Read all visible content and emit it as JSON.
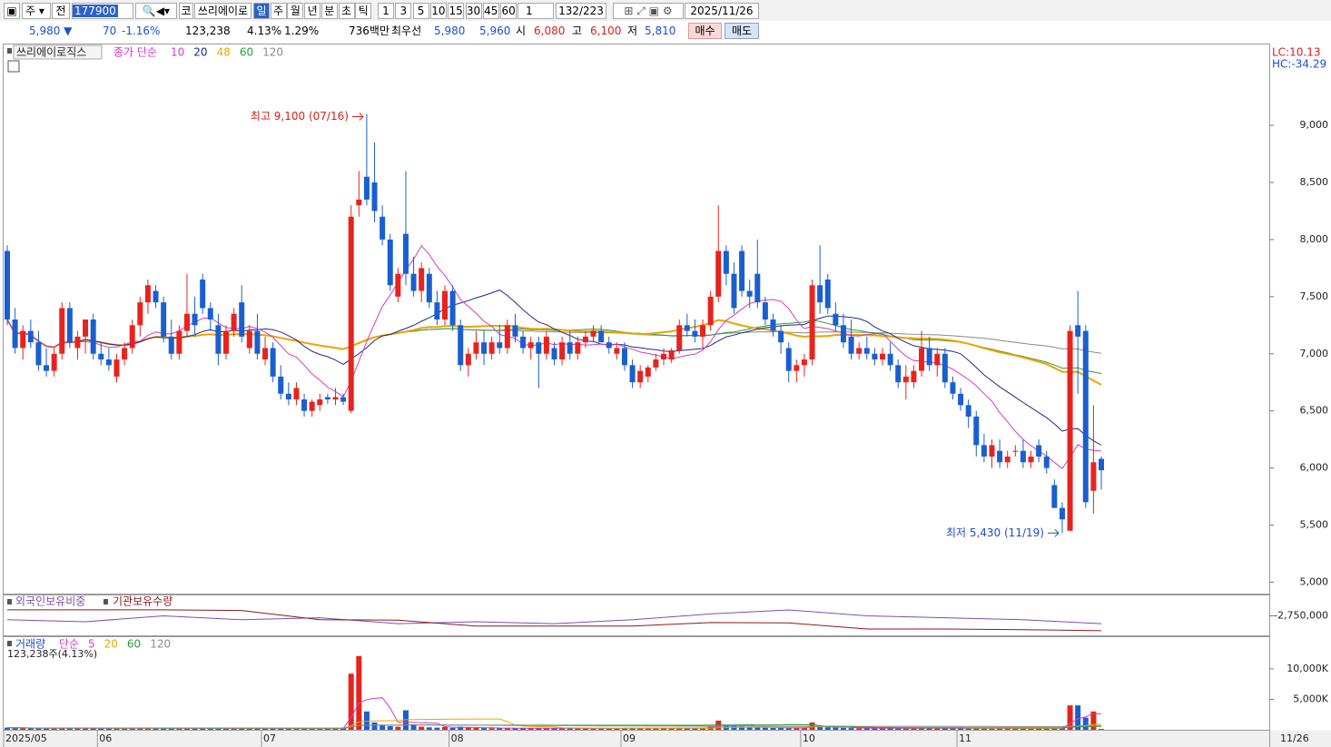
{
  "toolbar": {
    "market": "주",
    "prev": "전",
    "code": "177900",
    "kind": "코",
    "name": "쓰리에이로",
    "periods": [
      "일",
      "주",
      "월",
      "년",
      "분",
      "초",
      "틱"
    ],
    "intervals": [
      "1",
      "3",
      "5",
      "10",
      "15",
      "30",
      "45",
      "60"
    ],
    "count": "1",
    "range": "132/223",
    "date": "2025/11/26"
  },
  "info_bar": {
    "price": "5,980 ▼",
    "change": "70",
    "change_rate": "-1.16%",
    "volume": "123,238",
    "turnover_rate": "4.13%",
    "foreign_rate": "1.29%",
    "amount": "736백만",
    "best_label": "최우선",
    "best_ask": "5,980",
    "best_bid": "5,960",
    "open_label": "시",
    "open": "6,080",
    "high_label": "고",
    "high": "6,100",
    "low_label": "저",
    "low": "5,810",
    "buy": "매수",
    "sell": "매도"
  },
  "chart_data": [
    {
      "type": "candlestick",
      "stock_name": "쓰리에이로직스",
      "ma_label": "종가 단순",
      "ma_periods": [
        10,
        20,
        48,
        60,
        120
      ],
      "ma_colors": [
        "#d23cc8",
        "#1e2a8c",
        "#eba400",
        "#2e9a3a",
        "#8a8a8a"
      ],
      "lc_label": "LC:10.13",
      "hc_label": "HC:-34.29",
      "high_annotation": "최고 9,100 (07/16)",
      "low_annotation": "최저 5,430 (11/19)",
      "up_color": "#e8231e",
      "down_color": "#1a5fd0",
      "categories": [
        "2025/05",
        null,
        null,
        null,
        null,
        null,
        null,
        null,
        null,
        null,
        null,
        null,
        "06",
        null,
        null,
        null,
        null,
        null,
        null,
        null,
        null,
        null,
        null,
        null,
        null,
        null,
        null,
        null,
        null,
        null,
        null,
        null,
        null,
        "07",
        null,
        null,
        null,
        null,
        null,
        null,
        null,
        null,
        null,
        null,
        null,
        null,
        null,
        null,
        null,
        null,
        null,
        null,
        null,
        null,
        null,
        null,
        null,
        "08",
        null,
        null,
        null,
        null,
        null,
        null,
        null,
        null,
        null,
        null,
        null,
        null,
        null,
        null,
        null,
        null,
        null,
        null,
        null,
        null,
        null,
        "09",
        null,
        null,
        null,
        null,
        null,
        null,
        null,
        null,
        null,
        null,
        null,
        null,
        null,
        null,
        null,
        null,
        null,
        null,
        null,
        null,
        null,
        null,
        "10",
        null,
        null,
        null,
        null,
        null,
        null,
        null,
        null,
        null,
        null,
        null,
        null,
        null,
        null,
        null,
        null,
        null,
        null,
        null,
        "11",
        null,
        null,
        null,
        null,
        null,
        null,
        null,
        null,
        null,
        null,
        null,
        null,
        null,
        null,
        null,
        null,
        null,
        null
      ],
      "current_date_label": "11/26",
      "ohlc": [
        [
          7900,
          7950,
          7250,
          7300
        ],
        [
          7300,
          7400,
          7000,
          7050
        ],
        [
          7050,
          7250,
          6950,
          7200
        ],
        [
          7200,
          7300,
          7050,
          7100
        ],
        [
          7100,
          7200,
          6850,
          6900
        ],
        [
          6900,
          7050,
          6800,
          6850
        ],
        [
          6850,
          7050,
          6800,
          7000
        ],
        [
          7000,
          7450,
          6950,
          7400
        ],
        [
          7400,
          7450,
          7050,
          7100
        ],
        [
          7050,
          7200,
          6950,
          7150
        ],
        [
          7150,
          7300,
          7000,
          7300
        ],
        [
          7300,
          7350,
          6950,
          7000
        ],
        [
          7000,
          7100,
          6900,
          6950
        ],
        [
          6950,
          7050,
          6850,
          6900
        ],
        [
          6800,
          7000,
          6750,
          6950
        ],
        [
          6950,
          7100,
          6900,
          7050
        ],
        [
          7050,
          7300,
          7000,
          7250
        ],
        [
          7250,
          7500,
          7150,
          7450
        ],
        [
          7450,
          7650,
          7350,
          7600
        ],
        [
          7550,
          7600,
          7400,
          7450
        ],
        [
          7450,
          7500,
          7100,
          7150
        ],
        [
          7150,
          7300,
          6950,
          7000
        ],
        [
          7000,
          7250,
          6950,
          7200
        ],
        [
          7200,
          7700,
          7150,
          7350
        ],
        [
          7350,
          7500,
          7150,
          7250
        ],
        [
          7650,
          7700,
          7350,
          7400
        ],
        [
          7400,
          7450,
          7200,
          7300
        ],
        [
          7250,
          7350,
          6900,
          7000
        ],
        [
          7000,
          7250,
          6950,
          7200
        ],
        [
          7200,
          7400,
          7150,
          7350
        ],
        [
          7450,
          7600,
          7100,
          7150
        ],
        [
          7050,
          7250,
          7000,
          7200
        ],
        [
          7200,
          7350,
          6950,
          7000
        ],
        [
          6950,
          7150,
          6900,
          7050
        ],
        [
          7050,
          7100,
          6750,
          6800
        ],
        [
          6800,
          6900,
          6600,
          6650
        ],
        [
          6650,
          6750,
          6550,
          6600
        ],
        [
          6600,
          6750,
          6550,
          6700
        ],
        [
          6600,
          6650,
          6450,
          6500
        ],
        [
          6500,
          6600,
          6450,
          6580
        ],
        [
          6550,
          6650,
          6500,
          6600
        ],
        [
          6620,
          6650,
          6560,
          6600
        ],
        [
          6600,
          6700,
          6550,
          6620
        ],
        [
          6620,
          6650,
          6550,
          6580
        ],
        [
          6500,
          8300,
          6480,
          8200
        ],
        [
          8300,
          8600,
          8200,
          8350
        ],
        [
          8550,
          9100,
          8300,
          8350
        ],
        [
          8500,
          8850,
          8150,
          8250
        ],
        [
          8200,
          8300,
          7950,
          8000
        ],
        [
          8000,
          8050,
          7550,
          7600
        ],
        [
          7500,
          7750,
          7450,
          7700
        ],
        [
          8050,
          8600,
          7600,
          7700
        ],
        [
          7700,
          7850,
          7500,
          7550
        ],
        [
          7550,
          7800,
          7450,
          7750
        ],
        [
          7700,
          7750,
          7400,
          7450
        ],
        [
          7450,
          7550,
          7250,
          7300
        ],
        [
          7300,
          7600,
          7250,
          7550
        ],
        [
          7550,
          7600,
          7200,
          7250
        ],
        [
          7250,
          7300,
          6850,
          6900
        ],
        [
          6900,
          7050,
          6800,
          7000
        ],
        [
          7000,
          7200,
          6950,
          7100
        ],
        [
          7100,
          7200,
          6900,
          7000
        ],
        [
          7000,
          7150,
          6950,
          7100
        ],
        [
          7100,
          7250,
          7000,
          7050
        ],
        [
          7050,
          7300,
          7000,
          7250
        ],
        [
          7250,
          7350,
          7100,
          7150
        ],
        [
          7150,
          7200,
          7000,
          7050
        ],
        [
          7050,
          7150,
          6950,
          7100
        ],
        [
          7100,
          7150,
          6700,
          7000
        ],
        [
          7000,
          7200,
          6950,
          7150
        ],
        [
          7050,
          7100,
          6900,
          6950
        ],
        [
          6950,
          7150,
          6900,
          7100
        ],
        [
          7100,
          7200,
          6950,
          7000
        ],
        [
          7000,
          7150,
          6950,
          7100
        ],
        [
          7100,
          7200,
          7050,
          7150
        ],
        [
          7150,
          7250,
          7100,
          7200
        ],
        [
          7200,
          7250,
          7100,
          7100
        ],
        [
          7100,
          7150,
          7000,
          7050
        ],
        [
          7000,
          7100,
          6950,
          7050
        ],
        [
          7050,
          7100,
          6850,
          6900
        ],
        [
          6900,
          6950,
          6700,
          6750
        ],
        [
          6750,
          6900,
          6700,
          6850
        ],
        [
          6800,
          6900,
          6750,
          6880
        ],
        [
          6880,
          7000,
          6850,
          6950
        ],
        [
          6950,
          7050,
          6900,
          7000
        ],
        [
          6950,
          7050,
          6920,
          7030
        ],
        [
          7030,
          7300,
          7000,
          7250
        ],
        [
          7250,
          7350,
          7150,
          7200
        ],
        [
          7200,
          7300,
          7100,
          7150
        ],
        [
          7150,
          7300,
          7050,
          7250
        ],
        [
          7250,
          7550,
          7200,
          7500
        ],
        [
          7500,
          8300,
          7450,
          7900
        ],
        [
          7900,
          7950,
          7600,
          7700
        ],
        [
          7700,
          7800,
          7350,
          7400
        ],
        [
          7900,
          7950,
          7500,
          7550
        ],
        [
          7550,
          7650,
          7400,
          7500
        ],
        [
          7700,
          8000,
          7400,
          7450
        ],
        [
          7450,
          7500,
          7250,
          7300
        ],
        [
          7300,
          7350,
          7150,
          7200
        ],
        [
          7200,
          7250,
          7000,
          7100
        ],
        [
          7050,
          7100,
          6750,
          6850
        ],
        [
          6850,
          6950,
          6750,
          6900
        ],
        [
          6900,
          7000,
          6800,
          6950
        ],
        [
          6950,
          7650,
          6900,
          7600
        ],
        [
          7600,
          7950,
          7350,
          7450
        ],
        [
          7650,
          7700,
          7350,
          7400
        ],
        [
          7350,
          7450,
          7200,
          7250
        ],
        [
          7250,
          7350,
          7050,
          7100
        ],
        [
          7150,
          7300,
          6950,
          7000
        ],
        [
          7000,
          7100,
          6950,
          7050
        ],
        [
          7050,
          7150,
          6950,
          7000
        ],
        [
          7000,
          7050,
          6900,
          6950
        ],
        [
          6950,
          7050,
          6900,
          7000
        ],
        [
          7000,
          7100,
          6850,
          6900
        ],
        [
          6900,
          6950,
          6700,
          6750
        ],
        [
          6750,
          6900,
          6600,
          6800
        ],
        [
          6750,
          6900,
          6700,
          6850
        ],
        [
          6850,
          7200,
          6800,
          7050
        ],
        [
          7050,
          7150,
          6850,
          6900
        ],
        [
          6900,
          7050,
          6800,
          7000
        ],
        [
          7000,
          7050,
          6700,
          6750
        ],
        [
          6750,
          6800,
          6600,
          6650
        ],
        [
          6650,
          6700,
          6500,
          6550
        ],
        [
          6550,
          6600,
          6350,
          6450
        ],
        [
          6450,
          6500,
          6100,
          6200
        ],
        [
          6200,
          6300,
          6050,
          6100
        ],
        [
          6100,
          6250,
          6000,
          6200
        ],
        [
          6150,
          6250,
          6000,
          6050
        ],
        [
          6050,
          6150,
          6000,
          6100
        ],
        [
          6150,
          6200,
          6100,
          6150
        ],
        [
          6150,
          6250,
          6000,
          6050
        ],
        [
          6050,
          6150,
          6000,
          6100
        ],
        [
          6200,
          6250,
          6050,
          6100
        ],
        [
          6100,
          6150,
          5950,
          6000
        ],
        [
          5850,
          5900,
          5650,
          5650
        ],
        [
          5650,
          5700,
          5430,
          5550
        ],
        [
          5450,
          7250,
          5450,
          7200
        ],
        [
          7250,
          7550,
          6650,
          7150
        ],
        [
          7200,
          7250,
          5650,
          5700
        ],
        [
          5800,
          6550,
          5600,
          6050
        ],
        [
          6080,
          6100,
          5810,
          5980
        ]
      ],
      "ylim": [
        4900,
        9700
      ],
      "yticks": [
        {
          "value": 5000,
          "label": "5,000"
        },
        {
          "value": 5500,
          "label": "5,500"
        },
        {
          "value": 6000,
          "label": "6,000"
        },
        {
          "value": 6500,
          "label": "6,500"
        },
        {
          "value": 7000,
          "label": "7,000"
        },
        {
          "value": 7500,
          "label": "7,500"
        },
        {
          "value": 8000,
          "label": "8,000"
        },
        {
          "value": 8500,
          "label": "8,500"
        },
        {
          "value": 9000,
          "label": "9,000"
        }
      ]
    },
    {
      "type": "line",
      "series": [
        {
          "name": "외국인보유비중",
          "color": "#7b4fb0",
          "axis": "y2",
          "values": [
            1.2,
            1.15,
            1.3,
            1.2,
            1.25,
            1.1,
            1.15,
            1.1,
            1.2,
            1.35,
            1.45,
            1.3,
            1.25,
            1.2,
            1.1
          ]
        },
        {
          "name": "기관보유수량",
          "color": "#8b1a1a",
          "values": [
            -2580000,
            -2580000,
            -2580000,
            -2600000,
            -2860000,
            -2870000,
            -3040000,
            -3040000,
            -3040000,
            -2940000,
            -2950000,
            -3120000,
            -3120000,
            -3140000,
            -3170000
          ]
        }
      ],
      "ylim": [
        -3300000,
        -2200000
      ],
      "yticks": [
        {
          "value": -2750000,
          "label": "-2,750,000"
        }
      ],
      "y2lim": [
        0.8,
        1.8
      ]
    },
    {
      "type": "bar",
      "title": "거래량",
      "ma_label": "단순",
      "ma_periods": [
        5,
        20,
        60,
        120
      ],
      "ma_colors": [
        "#d23cc8",
        "#eba400",
        "#2e9a3a",
        "#8a8a8a"
      ],
      "subtitle": "123,238주(4.13%)",
      "values": [
        350,
        300,
        280,
        260,
        250,
        300,
        280,
        320,
        260,
        240,
        300,
        260,
        240,
        220,
        230,
        260,
        300,
        320,
        280,
        250,
        240,
        230,
        250,
        300,
        260,
        280,
        240,
        230,
        220,
        240,
        260,
        240,
        230,
        220,
        200,
        210,
        190,
        200,
        180,
        190,
        200,
        190,
        210,
        250,
        9200,
        12100,
        3000,
        1200,
        800,
        600,
        500,
        3200,
        900,
        500,
        400,
        350,
        450,
        300,
        500,
        350,
        300,
        280,
        260,
        300,
        250,
        240,
        260,
        230,
        300,
        250,
        240,
        230,
        220,
        250,
        230,
        220,
        240,
        230,
        220,
        280,
        300,
        260,
        250,
        240,
        230,
        260,
        350,
        300,
        280,
        300,
        500,
        1500,
        800,
        600,
        500,
        450,
        400,
        350,
        300,
        300,
        280,
        260,
        300,
        1200,
        600,
        400,
        350,
        300,
        280,
        260,
        250,
        240,
        230,
        250,
        260,
        240,
        230,
        300,
        260,
        240,
        250,
        260,
        240,
        230,
        250,
        240,
        260,
        230,
        220,
        240,
        230,
        220,
        240,
        250,
        300,
        350,
        4000,
        4000,
        2000,
        3000,
        123
      ],
      "ylim": [
        0,
        14000
      ],
      "yticks": [
        {
          "value": 5000,
          "label": "5,000K"
        },
        {
          "value": 10000,
          "label": "10,000K"
        }
      ]
    }
  ]
}
